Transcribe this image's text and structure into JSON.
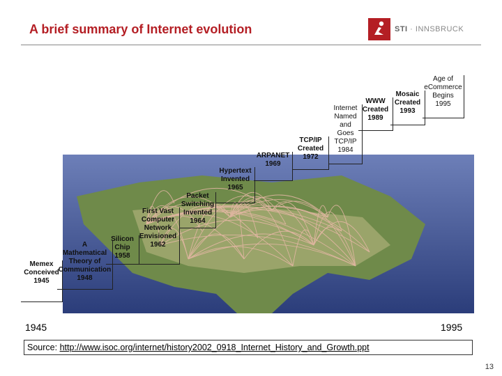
{
  "slide": {
    "title": "A brief summary of Internet evolution",
    "page_number": "13"
  },
  "logo": {
    "brand": "STI",
    "separator": " · ",
    "name": "INNSBRUCK"
  },
  "timeline": {
    "start_year": "1945",
    "end_year": "1995",
    "events": [
      {
        "lines": [
          "Memex",
          "Conceived",
          "1945"
        ]
      },
      {
        "lines": [
          "A",
          "Mathematical",
          "Theory of",
          "Communication",
          "1948"
        ]
      },
      {
        "lines": [
          "Silicon",
          "Chip",
          "1958"
        ]
      },
      {
        "lines": [
          "First Vast",
          "Computer",
          "Network",
          "Envisioned",
          "1962"
        ]
      },
      {
        "lines": [
          "Packet",
          "Switching",
          "Invented",
          "1964"
        ]
      },
      {
        "lines": [
          "Hypertext",
          "Invented",
          "1965"
        ]
      },
      {
        "lines": [
          "ARPANET",
          "1969"
        ]
      },
      {
        "lines": [
          "TCP/IP",
          "Created",
          "1972"
        ]
      },
      {
        "lines": [
          "Internet",
          "Named",
          "and",
          "Goes",
          "TCP/IP",
          "1984"
        ]
      },
      {
        "lines": [
          "WWW",
          "Created",
          "1989"
        ]
      },
      {
        "lines": [
          "Mosaic",
          "Created",
          "1993"
        ]
      },
      {
        "lines": [
          "Age of",
          "eCommerce",
          "Begins",
          "1995"
        ]
      }
    ]
  },
  "source": {
    "label": "Source: ",
    "url": "http://www.isoc.org/internet/history2002_0918_Internet_History_and_Growth.ppt"
  },
  "colors": {
    "accent": "#b41e24"
  }
}
